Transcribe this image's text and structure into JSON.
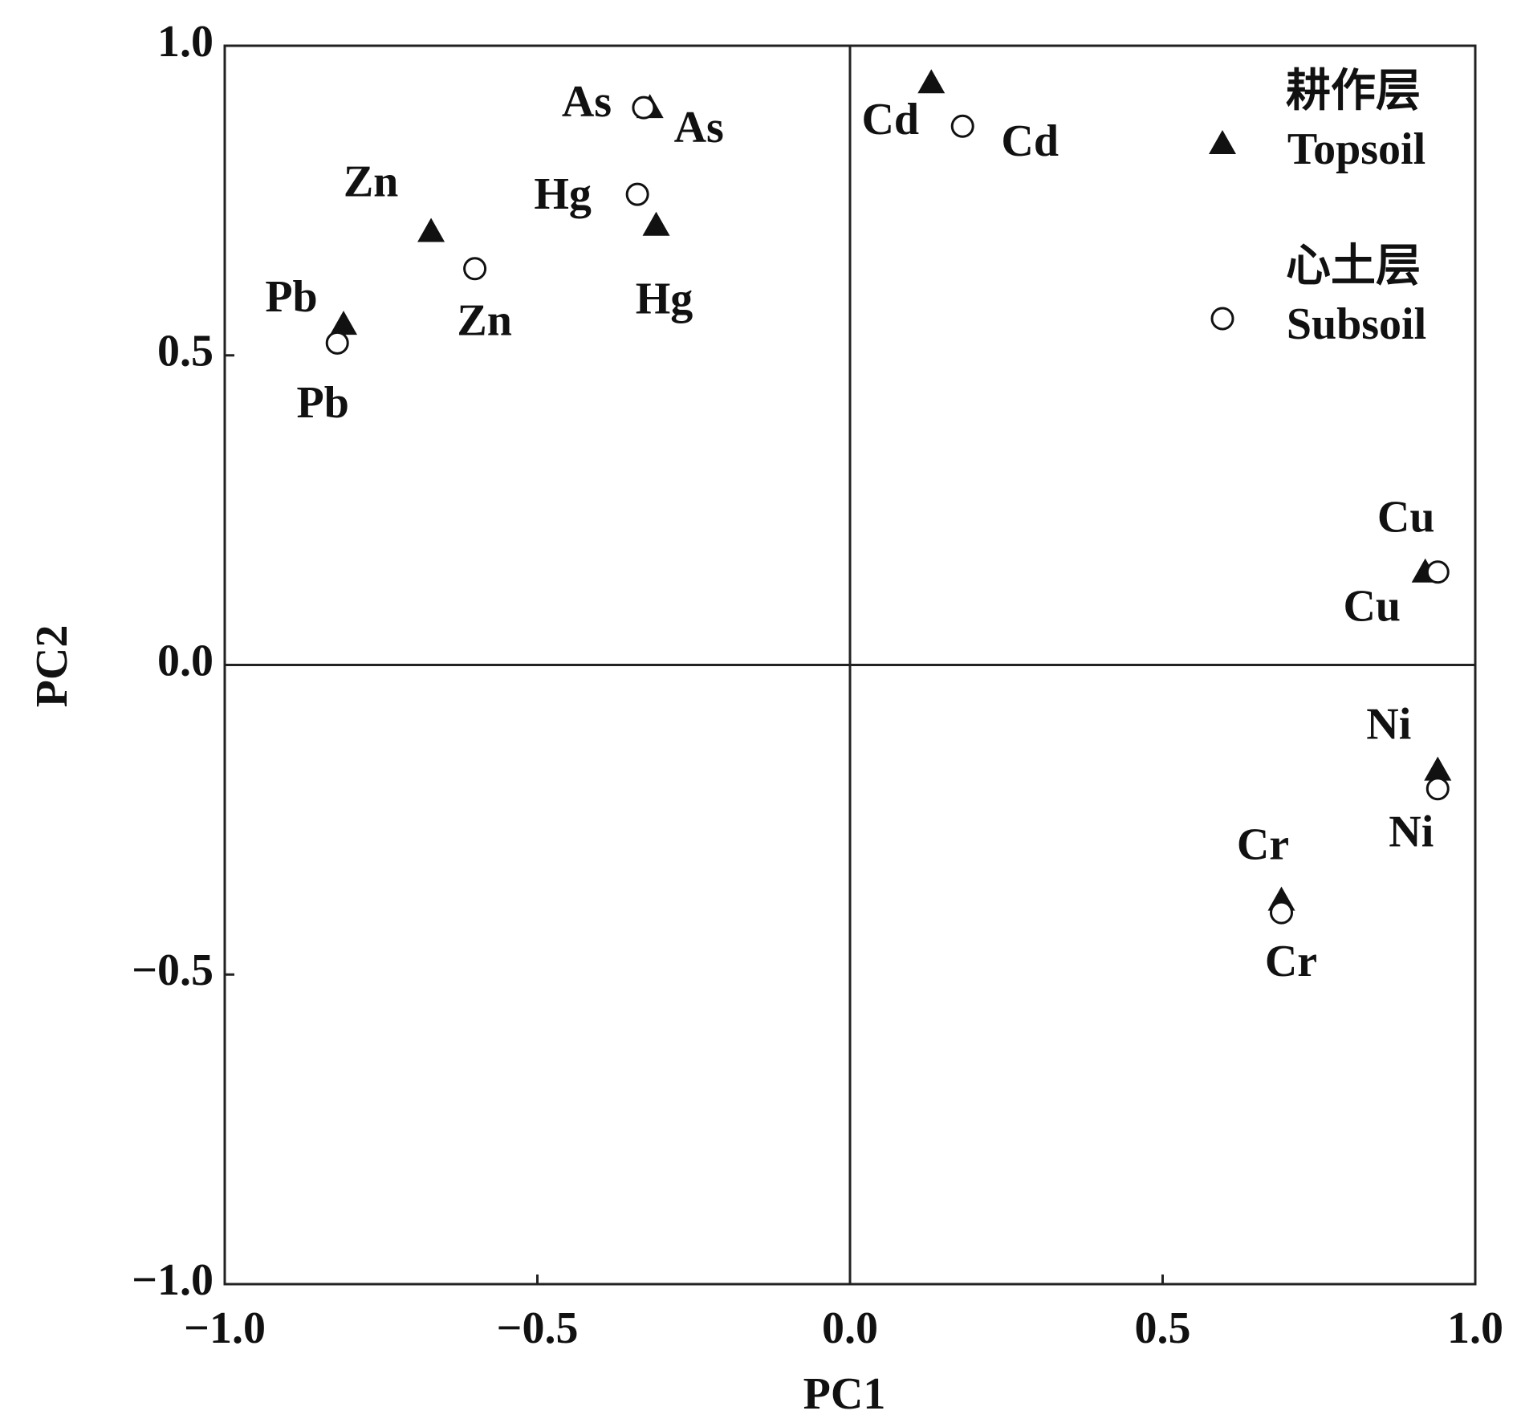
{
  "chart_data": {
    "type": "scatter",
    "xlabel": "PC1",
    "ylabel": "PC2",
    "xlim": [
      -1,
      1
    ],
    "ylim": [
      -1,
      1
    ],
    "xticks": [
      {
        "value": -1,
        "label": "−1.0"
      },
      {
        "value": -0.5,
        "label": "−0.5"
      },
      {
        "value": 0,
        "label": "0.0"
      },
      0.5,
      {
        "value": 1,
        "label": "1.0"
      }
    ],
    "yticks": [
      {
        "value": -1,
        "label": "−1.0"
      },
      {
        "value": -0.5,
        "label": "−0.5"
      },
      {
        "value": 0,
        "label": "0.0"
      },
      0.5,
      {
        "value": 1,
        "label": "1.0"
      }
    ],
    "zero_lines": true,
    "series": [
      {
        "name": "Topsoil",
        "name_cn": "耕作层",
        "marker": "triangle",
        "color": "#111111",
        "labels": [
          "As",
          "Hg",
          "Zn",
          "Pb",
          "Cd",
          "Cu",
          "Ni",
          "Cr"
        ],
        "x": [
          -0.32,
          -0.31,
          -0.67,
          -0.81,
          0.13,
          0.92,
          0.94,
          0.69
        ],
        "values": [
          0.9,
          0.71,
          0.7,
          0.55,
          0.94,
          0.15,
          -0.17,
          -0.38
        ]
      },
      {
        "name": "Subsoil",
        "name_cn": "心土层",
        "marker": "circle",
        "color": "#111111",
        "labels": [
          "As",
          "Hg",
          "Zn",
          "Pb",
          "Cd",
          "Cu",
          "Ni",
          "Cr"
        ],
        "x": [
          -0.33,
          -0.34,
          -0.6,
          -0.82,
          0.18,
          0.94,
          0.94,
          0.69
        ],
        "values": [
          0.9,
          0.76,
          0.64,
          0.52,
          0.87,
          0.15,
          -0.2,
          -0.4
        ]
      }
    ]
  }
}
